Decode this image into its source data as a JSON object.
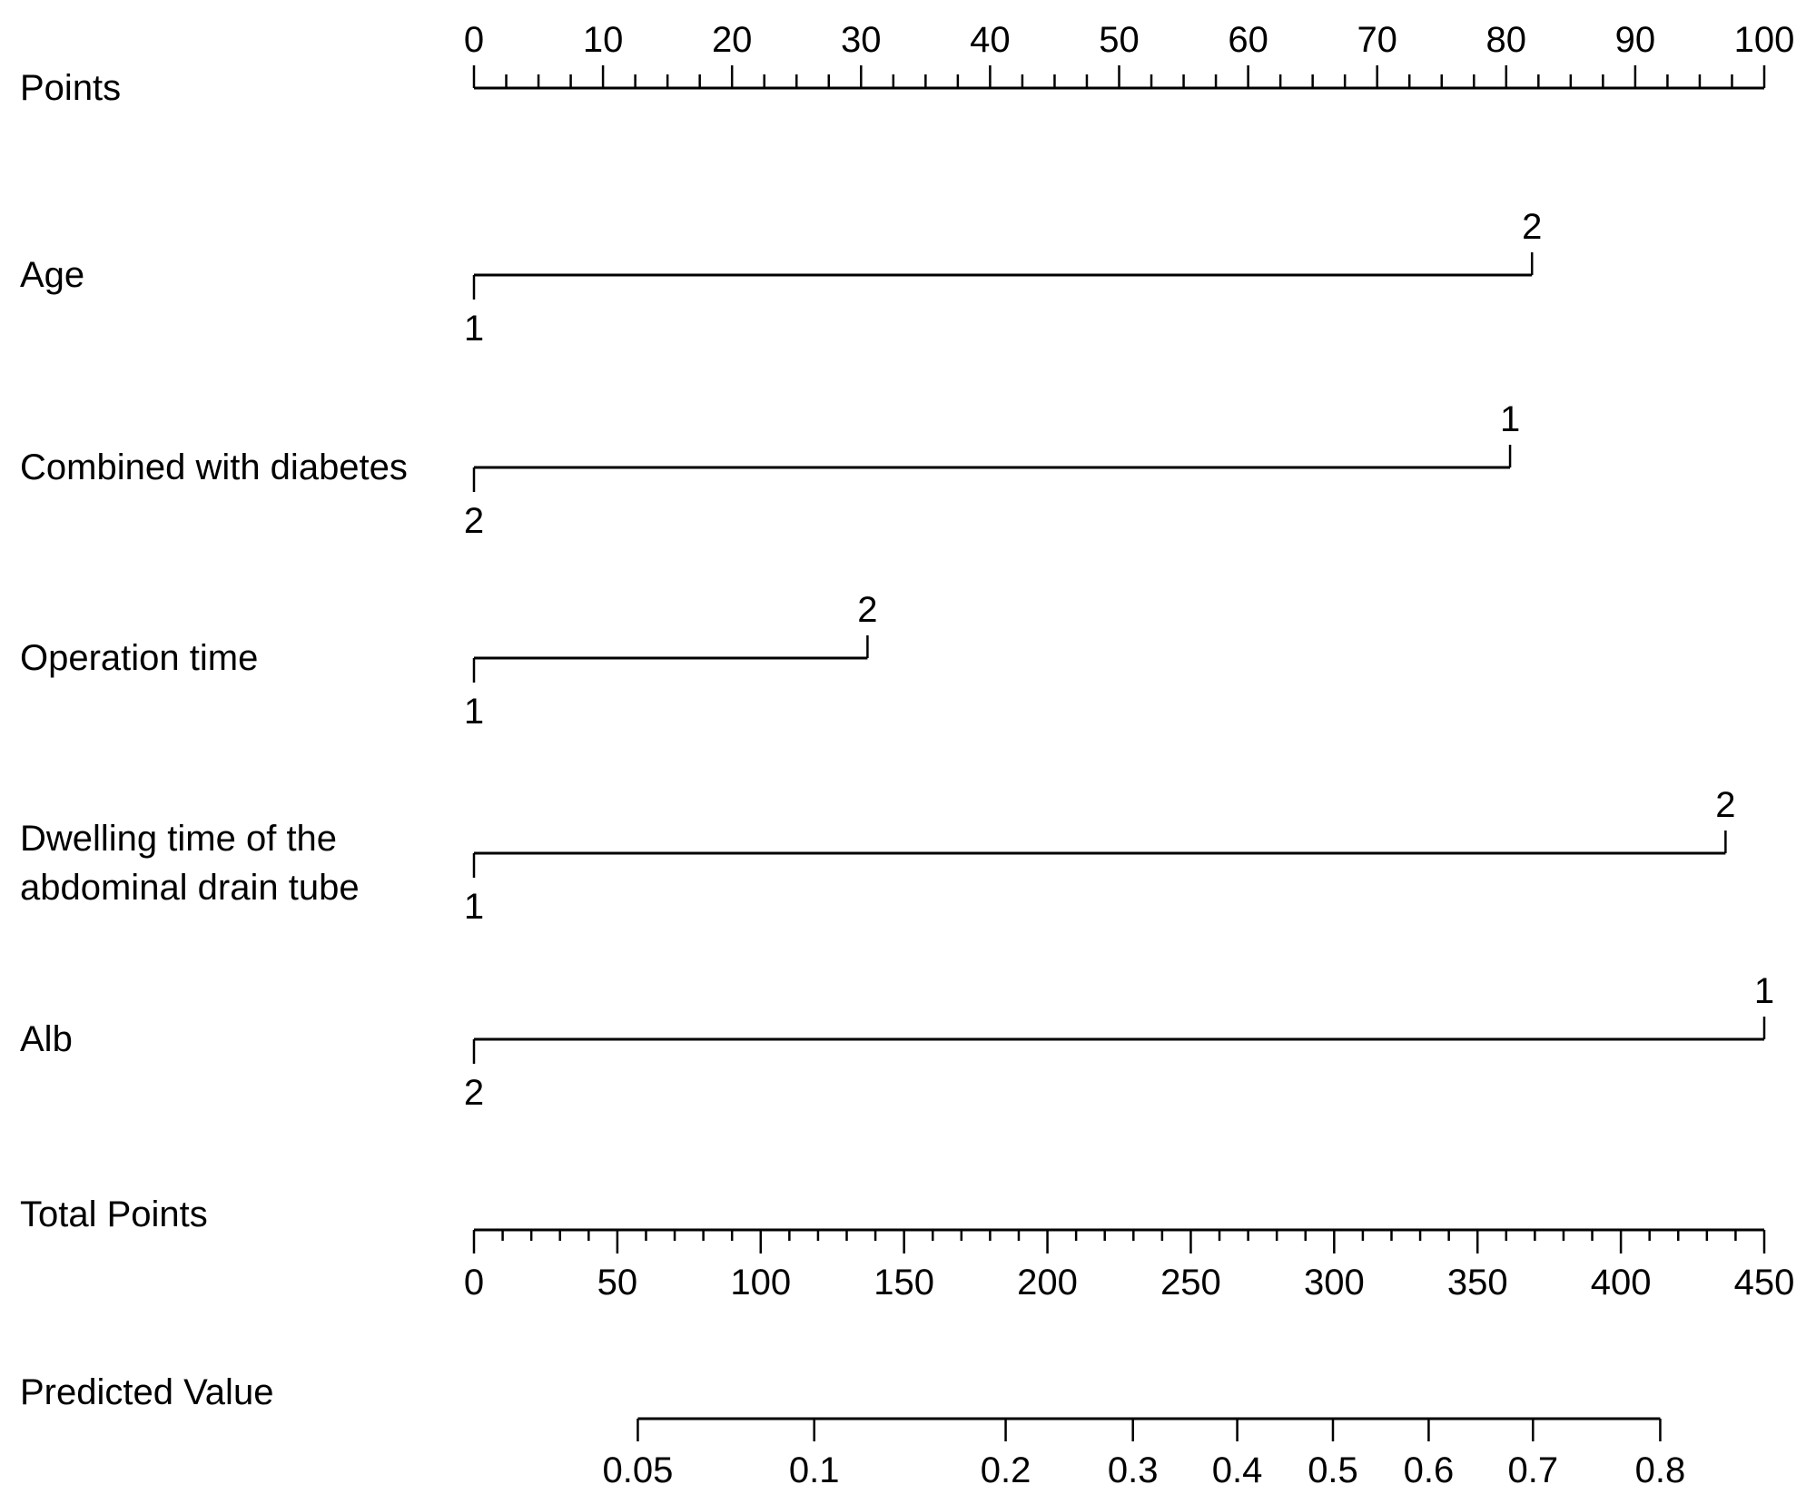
{
  "figure": {
    "background": "#ffffff",
    "ink_color": "#000000"
  },
  "chart_data": {
    "type": "nomogram",
    "rows_order": [
      "points",
      "age",
      "combined_with_diabetes",
      "operation_time",
      "dwelling_time_of_the_abdominal_drain_tube",
      "alb",
      "total_points",
      "predicted_value"
    ],
    "points_axis": {
      "label": "Points",
      "min": 0,
      "max": 100,
      "major_tick_step": 10,
      "minor_tick_step": 2.5,
      "tick_labels": [
        "0",
        "10",
        "20",
        "30",
        "40",
        "50",
        "60",
        "70",
        "80",
        "90",
        "100"
      ]
    },
    "factors": [
      {
        "label": "Age",
        "label_lines": [
          "Age"
        ],
        "levels": [
          {
            "value": "1",
            "points": 0,
            "label_position": "below"
          },
          {
            "value": "2",
            "points": 82,
            "label_position": "above"
          }
        ]
      },
      {
        "label": "Combined with diabetes",
        "label_lines": [
          "Combined with diabetes"
        ],
        "levels": [
          {
            "value": "2",
            "points": 0,
            "label_position": "below"
          },
          {
            "value": "1",
            "points": 80.3,
            "label_position": "above"
          }
        ]
      },
      {
        "label": "Operation time",
        "label_lines": [
          "Operation time"
        ],
        "levels": [
          {
            "value": "1",
            "points": 0,
            "label_position": "below"
          },
          {
            "value": "2",
            "points": 30.5,
            "label_position": "above"
          }
        ]
      },
      {
        "label": "Dwelling time of the abdominal drain tube",
        "label_lines": [
          "Dwelling time of the",
          "abdominal drain tube"
        ],
        "levels": [
          {
            "value": "1",
            "points": 0,
            "label_position": "below"
          },
          {
            "value": "2",
            "points": 97,
            "label_position": "above"
          }
        ]
      },
      {
        "label": "Alb",
        "label_lines": [
          "Alb"
        ],
        "levels": [
          {
            "value": "2",
            "points": 0,
            "label_position": "below"
          },
          {
            "value": "1",
            "points": 100,
            "label_position": "above"
          }
        ]
      }
    ],
    "total_points_axis": {
      "label": "Total Points",
      "min": 0,
      "max": 450,
      "major_tick_step": 50,
      "minor_tick_step": 10,
      "tick_labels": [
        "0",
        "50",
        "100",
        "150",
        "200",
        "250",
        "300",
        "350",
        "400",
        "450"
      ]
    },
    "predicted_value_axis": {
      "label": "Predicted Value",
      "scale": "logit",
      "tick_labels": [
        "0.05",
        "0.1",
        "0.2",
        "0.3",
        "0.4",
        "0.5",
        "0.6",
        "0.7",
        "0.8"
      ],
      "tick_values": [
        0.05,
        0.1,
        0.2,
        0.3,
        0.4,
        0.5,
        0.6,
        0.7,
        0.8
      ]
    }
  }
}
